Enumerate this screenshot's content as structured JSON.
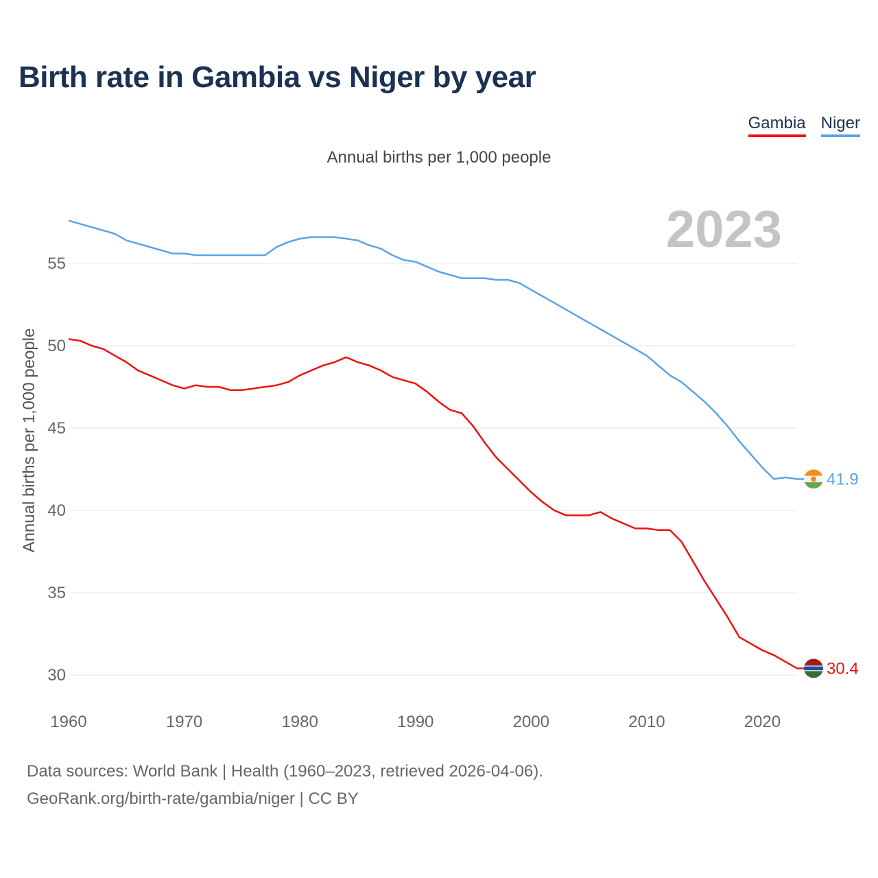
{
  "title": "Birth rate in Gambia vs Niger by year",
  "subtitle": "Annual births per 1,000 people",
  "legend": [
    {
      "name": "Gambia",
      "color": "#ee1111"
    },
    {
      "name": "Niger",
      "color": "#5ba3e6"
    }
  ],
  "year_label": "2023",
  "footer": {
    "line1": "Data sources: World Bank | Health (1960–2023, retrieved 2026-04-06).",
    "line2": "GeoRank.org/birth-rate/gambia/niger | CC BY"
  },
  "chart_data": {
    "type": "line",
    "title": "Birth rate in Gambia vs Niger by year",
    "ylabel": "Annual births per 1,000 people",
    "xlabel": "",
    "xlim": [
      1960,
      2023
    ],
    "ylim": [
      28.5,
      58.5
    ],
    "x_ticks": [
      1960,
      1970,
      1980,
      1990,
      2000,
      2010,
      2020
    ],
    "y_ticks": [
      30,
      35,
      40,
      45,
      50,
      55
    ],
    "grid": true,
    "legend_position": "top-right",
    "x": [
      1960,
      1961,
      1962,
      1963,
      1964,
      1965,
      1966,
      1967,
      1968,
      1969,
      1970,
      1971,
      1972,
      1973,
      1974,
      1975,
      1976,
      1977,
      1978,
      1979,
      1980,
      1981,
      1982,
      1983,
      1984,
      1985,
      1986,
      1987,
      1988,
      1989,
      1990,
      1991,
      1992,
      1993,
      1994,
      1995,
      1996,
      1997,
      1998,
      1999,
      2000,
      2001,
      2002,
      2003,
      2004,
      2005,
      2006,
      2007,
      2008,
      2009,
      2010,
      2011,
      2012,
      2013,
      2014,
      2015,
      2016,
      2017,
      2018,
      2019,
      2020,
      2021,
      2022,
      2023
    ],
    "series": [
      {
        "name": "Gambia",
        "color": "#ee1111",
        "end_label": "30.4",
        "values": [
          50.4,
          50.3,
          50.0,
          49.8,
          49.4,
          49.0,
          48.5,
          48.2,
          47.9,
          47.6,
          47.4,
          47.6,
          47.5,
          47.5,
          47.3,
          47.3,
          47.4,
          47.5,
          47.6,
          47.8,
          48.2,
          48.5,
          48.8,
          49.0,
          49.3,
          49.0,
          48.8,
          48.5,
          48.1,
          47.9,
          47.7,
          47.2,
          46.6,
          46.1,
          45.9,
          45.1,
          44.1,
          43.2,
          42.5,
          41.8,
          41.1,
          40.5,
          40.0,
          39.7,
          39.7,
          39.7,
          39.9,
          39.5,
          39.2,
          38.9,
          38.9,
          38.8,
          38.8,
          38.1,
          36.9,
          35.7,
          34.6,
          33.5,
          32.3,
          31.9,
          31.5,
          31.2,
          30.8,
          30.4
        ]
      },
      {
        "name": "Niger",
        "color": "#5ba3e6",
        "end_label": "41.9",
        "values": [
          57.6,
          57.4,
          57.2,
          57.0,
          56.8,
          56.4,
          56.2,
          56.0,
          55.8,
          55.6,
          55.6,
          55.5,
          55.5,
          55.5,
          55.5,
          55.5,
          55.5,
          55.5,
          56.0,
          56.3,
          56.5,
          56.6,
          56.6,
          56.6,
          56.5,
          56.4,
          56.1,
          55.9,
          55.5,
          55.2,
          55.1,
          54.8,
          54.5,
          54.3,
          54.1,
          54.1,
          54.1,
          54.0,
          54.0,
          53.8,
          53.4,
          53.0,
          52.6,
          52.2,
          51.8,
          51.4,
          51.0,
          50.6,
          50.2,
          49.8,
          49.4,
          48.8,
          48.2,
          47.8,
          47.2,
          46.6,
          45.9,
          45.1,
          44.2,
          43.4,
          42.6,
          41.9,
          42.0,
          41.9
        ]
      }
    ]
  }
}
